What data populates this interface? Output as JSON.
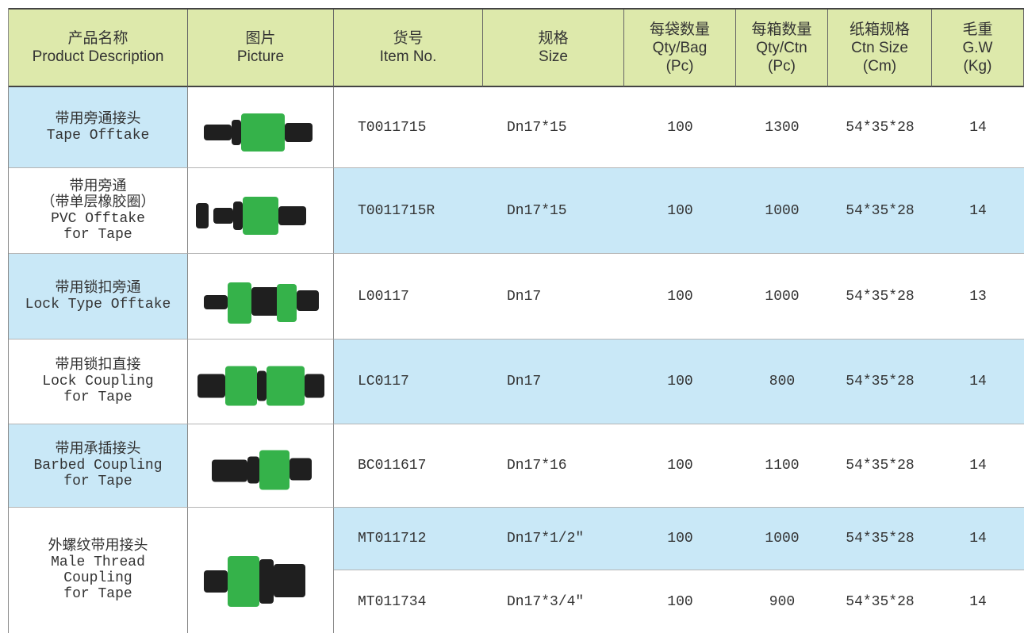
{
  "table": {
    "header": [
      [
        "产品名称",
        "Product Description"
      ],
      [
        "图片",
        "Picture"
      ],
      [
        "货号",
        "Item No."
      ],
      [
        "规格",
        "Size"
      ],
      [
        "每袋数量",
        "Qty/Bag",
        "(Pc)"
      ],
      [
        "每箱数量",
        "Qty/Ctn",
        "(Pc)"
      ],
      [
        "纸箱规格",
        "Ctn Size",
        "(Cm)"
      ],
      [
        "毛重",
        "G.W",
        "(Kg)"
      ]
    ],
    "rows": [
      {
        "description": [
          "带用旁通接头",
          "Tape Offtake"
        ],
        "items": [
          [
            "T0011715",
            "Dn17*15",
            "100",
            "1300",
            "54*35*28",
            "14"
          ]
        ]
      },
      {
        "description": [
          "带用旁通",
          "（带单层橡胶圈）",
          "PVC Offtake",
          "for Tape"
        ],
        "items": [
          [
            "T0011715R",
            "Dn17*15",
            "100",
            "1000",
            "54*35*28",
            "14"
          ]
        ]
      },
      {
        "description": [
          "带用锁扣旁通",
          "Lock Type Offtake"
        ],
        "items": [
          [
            "L00117",
            "Dn17",
            "100",
            "1000",
            "54*35*28",
            "13"
          ]
        ]
      },
      {
        "description": [
          "带用锁扣直接",
          "Lock Coupling",
          "for Tape"
        ],
        "items": [
          [
            "LC0117",
            "Dn17",
            "100",
            "800",
            "54*35*28",
            "14"
          ]
        ]
      },
      {
        "description": [
          "带用承插接头",
          "Barbed Coupling",
          "for Tape"
        ],
        "items": [
          [
            "BC011617",
            "Dn17*16",
            "100",
            "1100",
            "54*35*28",
            "14"
          ]
        ]
      },
      {
        "description": [
          "外螺纹带用接头",
          "Male Thread",
          "Coupling",
          "for Tape"
        ],
        "items": [
          [
            "MT011712",
            "Dn17*1/2″",
            "100",
            "1000",
            "54*35*28",
            "14"
          ],
          [
            "MT011734",
            "Dn17*3/4″",
            "100",
            "900",
            "54*35*28",
            "14"
          ]
        ]
      }
    ]
  }
}
